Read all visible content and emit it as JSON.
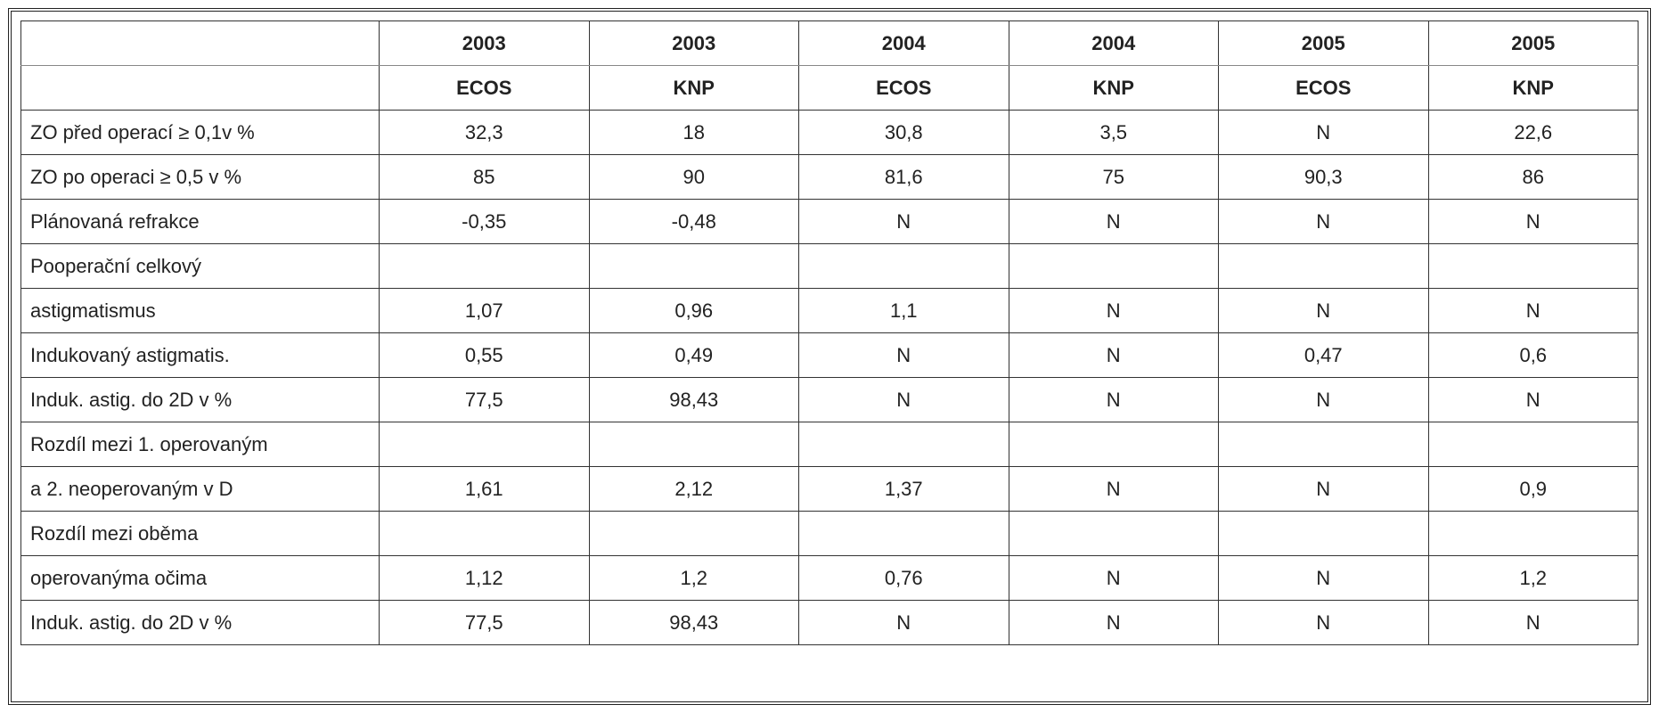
{
  "table": {
    "header": {
      "years": [
        "2003",
        "2003",
        "2004",
        "2004",
        "2005",
        "2005"
      ],
      "groups": [
        "ECOS",
        "KNP",
        "ECOS",
        "KNP",
        "ECOS",
        "KNP"
      ]
    },
    "rows": [
      {
        "label": "ZO před operací ≥ 0,1v  %",
        "cells": [
          "32,3",
          "18",
          "30,8",
          "3,5",
          "N",
          "22,6"
        ]
      },
      {
        "label": "ZO po operaci ≥ 0,5 v  %",
        "cells": [
          "85",
          "90",
          "81,6",
          "75",
          "90,3",
          "86"
        ]
      },
      {
        "label": "Plánovaná refrakce",
        "cells": [
          "-0,35",
          "-0,48",
          "N",
          "N",
          "N",
          "N"
        ]
      },
      {
        "label": "Pooperační celkový",
        "cells": [
          null,
          null,
          null,
          null,
          null,
          null
        ]
      },
      {
        "label": "astigmatismus",
        "cells": [
          "1,07",
          "0,96",
          "1,1",
          "N",
          "N",
          "N"
        ]
      },
      {
        "label": "Indukovaný astigmatis.",
        "cells": [
          "0,55",
          "0,49",
          "N",
          "N",
          "0,47",
          "0,6"
        ]
      },
      {
        "label": "Induk. astig. do 2D v  %",
        "cells": [
          "77,5",
          "98,43",
          "N",
          "N",
          "N",
          "N"
        ]
      },
      {
        "label": "Rozdíl mezi 1. operovaným",
        "cells": [
          null,
          null,
          null,
          null,
          null,
          null
        ]
      },
      {
        "label": "a 2. neoperovaným v D",
        "cells": [
          "1,61",
          "2,12",
          "1,37",
          "N",
          "N",
          "0,9"
        ]
      },
      {
        "label": "Rozdíl mezi oběma",
        "cells": [
          null,
          null,
          null,
          null,
          null,
          null
        ]
      },
      {
        "label": "operovanýma očima",
        "cells": [
          "1,12",
          "1,2",
          "0,76",
          "N",
          "N",
          "1,2"
        ]
      },
      {
        "label": "Induk. astig. do 2D v  %",
        "cells": [
          "77,5",
          "98,43",
          "N",
          "N",
          "N",
          "N"
        ]
      }
    ]
  }
}
